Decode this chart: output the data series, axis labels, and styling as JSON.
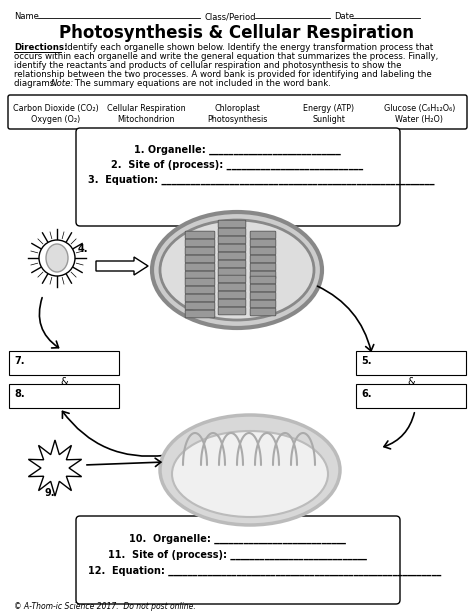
{
  "title": "Photosynthesis & Cellular Respiration",
  "word_bank_row1": [
    "Carbon Dioxide (CO₂)",
    "Cellular Respiration",
    "Chloroplast",
    "Energy (ATP)",
    "Glucose (C₆H₁₂O₆)"
  ],
  "word_bank_row2": [
    "Oxygen (O₂)",
    "Mitochondrion",
    "Photosynthesis",
    "Sunlight",
    "Water (H₂O)"
  ],
  "copyright": "© A-Thom-ic Science 2017.  Do not post online.",
  "bg_color": "#ffffff",
  "chloro_gray": "#aaaaaa",
  "chloro_fill": "#c8c8c8",
  "thylakoid_fill": "#999999",
  "thylakoid_edge": "#666666",
  "mito_fill": "#e0e0e0",
  "mito_edge": "#aaaaaa"
}
